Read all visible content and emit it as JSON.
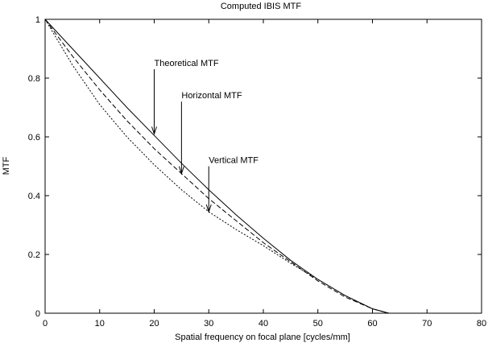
{
  "chart_data": {
    "type": "line",
    "title": "Computed IBIS  MTF",
    "xlabel": "Spatial frequency on focal plane [cycles/mm]",
    "ylabel": "MTF",
    "xlim": [
      0,
      80
    ],
    "ylim": [
      0,
      1
    ],
    "xticks": [
      0,
      10,
      20,
      30,
      40,
      50,
      60,
      70,
      80
    ],
    "yticks": [
      0,
      0.2,
      0.4,
      0.6,
      0.8,
      1
    ],
    "grid": false,
    "series": [
      {
        "name": "Theoretical MTF",
        "style": "solid",
        "x": [
          0,
          5,
          10,
          15,
          20,
          25,
          30,
          35,
          40,
          45,
          50,
          55,
          60,
          63
        ],
        "y": [
          1.0,
          0.9,
          0.8,
          0.7,
          0.605,
          0.51,
          0.42,
          0.335,
          0.255,
          0.18,
          0.115,
          0.06,
          0.015,
          0.0
        ]
      },
      {
        "name": "Horizontal MTF",
        "style": "dashed",
        "x": [
          0,
          5,
          10,
          15,
          20,
          25,
          30,
          35,
          40,
          45,
          50,
          55,
          60,
          63
        ],
        "y": [
          1.0,
          0.875,
          0.76,
          0.655,
          0.56,
          0.475,
          0.39,
          0.315,
          0.24,
          0.175,
          0.11,
          0.055,
          0.015,
          0.0
        ]
      },
      {
        "name": "Vertical MTF",
        "style": "dotted",
        "x": [
          0,
          5,
          10,
          15,
          20,
          25,
          30,
          35,
          40,
          45,
          50,
          55,
          60,
          63
        ],
        "y": [
          1.0,
          0.845,
          0.71,
          0.6,
          0.505,
          0.42,
          0.345,
          0.285,
          0.23,
          0.17,
          0.115,
          0.06,
          0.015,
          0.0
        ]
      }
    ],
    "annotations": [
      {
        "text": "Theoretical MTF",
        "arrow_to": [
          20,
          0.61
        ],
        "text_at": [
          20,
          0.83
        ]
      },
      {
        "text": "Horizontal MTF",
        "arrow_to": [
          25,
          0.475
        ],
        "text_at": [
          25,
          0.72
        ]
      },
      {
        "text": "Vertical MTF",
        "arrow_to": [
          30,
          0.345
        ],
        "text_at": [
          30,
          0.5
        ]
      }
    ]
  }
}
